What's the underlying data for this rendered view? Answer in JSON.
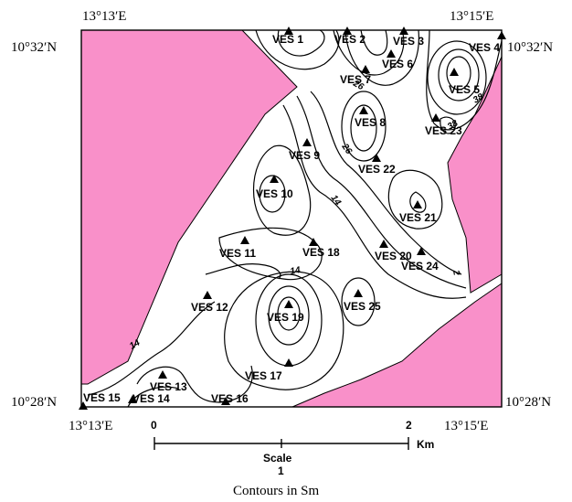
{
  "coords": {
    "top_left": "13°13′E",
    "top_right": "13°15′E",
    "bottom_left": "13°13′E",
    "bottom_right": "13°15′E",
    "left_top": "10°32′N",
    "right_top": "10°32′N",
    "left_bottom": "10°28′N",
    "right_bottom": "10°28′N"
  },
  "stations": [
    {
      "id": "VES 1"
    },
    {
      "id": "VES 2"
    },
    {
      "id": "VES 3"
    },
    {
      "id": "VES 4"
    },
    {
      "id": "VES 5"
    },
    {
      "id": "VES 6"
    },
    {
      "id": "VES 7"
    },
    {
      "id": "VES 8"
    },
    {
      "id": "VES 9"
    },
    {
      "id": "VES 10"
    },
    {
      "id": "VES 11"
    },
    {
      "id": "VES 12"
    },
    {
      "id": "VES 13"
    },
    {
      "id": "VES 14"
    },
    {
      "id": "VES 15"
    },
    {
      "id": "VES 16"
    },
    {
      "id": "VES 17"
    },
    {
      "id": "VES 18"
    },
    {
      "id": "VES 19"
    },
    {
      "id": "VES 20"
    },
    {
      "id": "VES 21"
    },
    {
      "id": "VES 22"
    },
    {
      "id": "VES 23"
    },
    {
      "id": "VES 24"
    },
    {
      "id": "VES 25"
    }
  ],
  "contour_labels": [
    "14",
    "14",
    "14",
    "26",
    "26",
    "2",
    "38",
    "38"
  ],
  "scale": {
    "start": "0",
    "mid": "1",
    "end": "2",
    "unit": "Km",
    "label": "Scale"
  },
  "caption": "Contours in Sm",
  "colors": {
    "zone_fill": "#f990c9",
    "background": "#ffffff",
    "line": "#000000"
  }
}
